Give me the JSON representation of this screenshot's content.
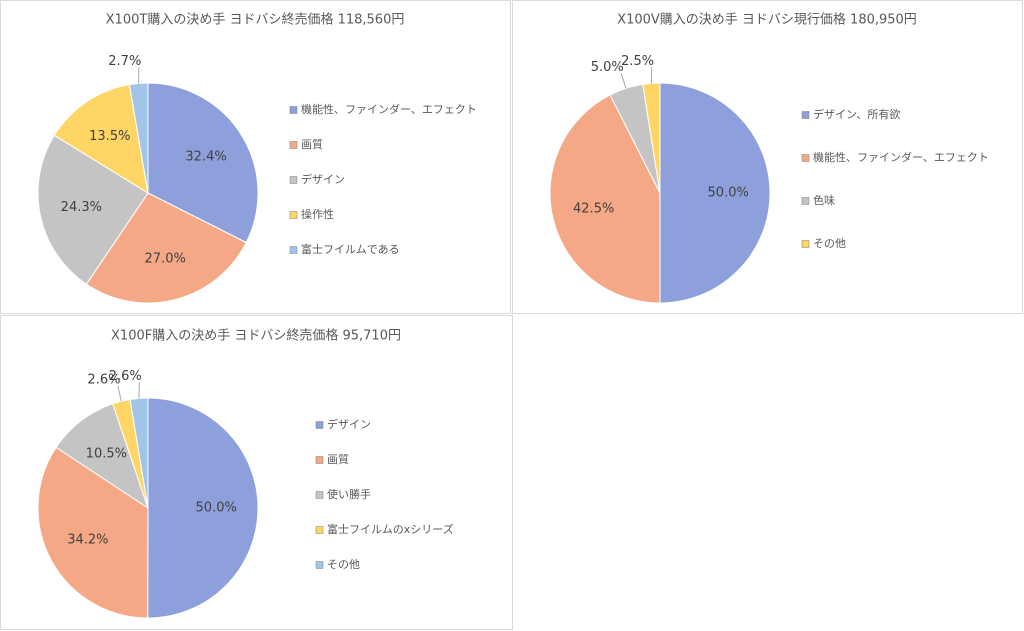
{
  "chart_data": [
    {
      "type": "pie",
      "title": "X100T購入の決め手 ヨドバシ終売価格 118,560円",
      "categories": [
        "機能性、ファインダー、エフェクト",
        "画質",
        "デザイン",
        "操作性",
        "富士フイルムである"
      ],
      "values": [
        32.4,
        27.0,
        24.3,
        13.5,
        2.7
      ],
      "value_labels": [
        "32.4%",
        "27.0%",
        "24.3%",
        "13.5%",
        "2.7%"
      ],
      "colors": [
        "#8da0db",
        "#f4a886",
        "#c4c4c4",
        "#ffd666",
        "#a2c4e8"
      ]
    },
    {
      "type": "pie",
      "title": "X100V購入の決め手 ヨドバシ現行価格 180,950円",
      "categories": [
        "デザイン、所有欲",
        "機能性、ファインダー、エフェクト",
        "色味",
        "その他"
      ],
      "values": [
        50.0,
        42.5,
        5.0,
        2.5
      ],
      "value_labels": [
        "50.0%",
        "42.5%",
        "5.0%",
        "2.5%"
      ],
      "colors": [
        "#8da0db",
        "#f4a886",
        "#c4c4c4",
        "#ffd666"
      ]
    },
    {
      "type": "pie",
      "title": "X100F購入の決め手 ヨドバシ終売価格 95,710円",
      "categories": [
        "デザイン",
        "画質",
        "使い勝手",
        "富士フイルムのxシリーズ",
        "その他"
      ],
      "values": [
        50.0,
        34.2,
        10.5,
        2.6,
        2.6
      ],
      "value_labels": [
        "50.0%",
        "34.2%",
        "10.5%",
        "2.6%",
        "2.6%"
      ],
      "colors": [
        "#8da0db",
        "#f4a886",
        "#c4c4c4",
        "#ffd666",
        "#a2c4e8"
      ]
    }
  ]
}
